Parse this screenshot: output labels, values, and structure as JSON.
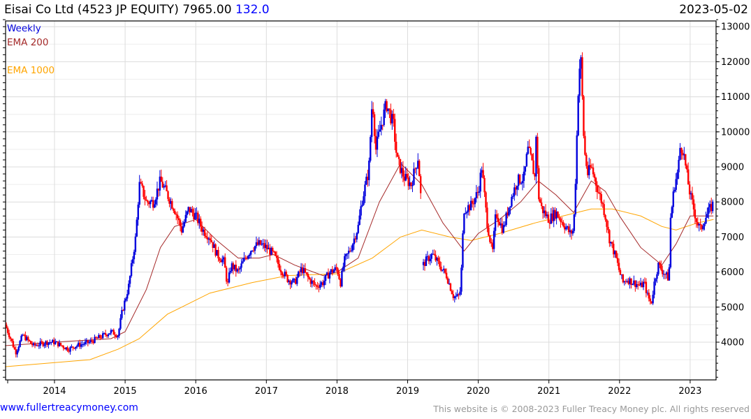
{
  "header": {
    "name": "Eisai Co Ltd (4523 JP EQUITY)",
    "price": "7965.00",
    "change": "132.0",
    "date": "2023-05-02"
  },
  "footer": {
    "link": "www.fullertreacymoney.com",
    "copyright": "This website is © 2008-2023 Fuller Treacy Money plc. All rights reserved"
  },
  "chart_data": {
    "type": "candlestick",
    "title": "Eisai Co Ltd (4523 JP EQUITY) 7965.00 132.0",
    "frequency_label": "Weekly",
    "legend": [
      {
        "label": "Weekly",
        "color": "#0000dd"
      },
      {
        "label": "EMA 200",
        "color": "#a52a2a"
      },
      {
        "label": "EMA 1000",
        "color": "#ffa500"
      }
    ],
    "legend_placement": "top-left",
    "x_range": [
      2013.3,
      2023.4
    ],
    "x_ticks": [
      "2014",
      "2015",
      "2016",
      "2017",
      "2018",
      "2019",
      "2020",
      "2021",
      "2022",
      "2023"
    ],
    "y_range": [
      3000,
      13200
    ],
    "y_ticks": [
      "4000",
      "5000",
      "6000",
      "7000",
      "8000",
      "9000",
      "10000",
      "11000",
      "12000",
      "13000"
    ],
    "grid": true,
    "up_color": "#0000dd",
    "down_color": "#ff0000",
    "price_close_approx": [
      [
        2013.3,
        4500
      ],
      [
        2013.38,
        4100
      ],
      [
        2013.45,
        3700
      ],
      [
        2013.55,
        4200
      ],
      [
        2013.7,
        3900
      ],
      [
        2013.9,
        4000
      ],
      [
        2014.0,
        4000
      ],
      [
        2014.1,
        3900
      ],
      [
        2014.2,
        3800
      ],
      [
        2014.3,
        3900
      ],
      [
        2014.5,
        4000
      ],
      [
        2014.7,
        4200
      ],
      [
        2014.8,
        4300
      ],
      [
        2014.9,
        4200
      ],
      [
        2014.95,
        4800
      ],
      [
        2015.05,
        5600
      ],
      [
        2015.1,
        6300
      ],
      [
        2015.15,
        7000
      ],
      [
        2015.2,
        8500
      ],
      [
        2015.25,
        8300
      ],
      [
        2015.3,
        8000
      ],
      [
        2015.4,
        8000
      ],
      [
        2015.5,
        8600
      ],
      [
        2015.6,
        8200
      ],
      [
        2015.7,
        7800
      ],
      [
        2015.8,
        7200
      ],
      [
        2015.9,
        7800
      ],
      [
        2016.0,
        7600
      ],
      [
        2016.1,
        7200
      ],
      [
        2016.2,
        7000
      ],
      [
        2016.3,
        6500
      ],
      [
        2016.4,
        6300
      ],
      [
        2016.45,
        5600
      ],
      [
        2016.5,
        6200
      ],
      [
        2016.6,
        6000
      ],
      [
        2016.7,
        6400
      ],
      [
        2016.8,
        6700
      ],
      [
        2016.9,
        6800
      ],
      [
        2017.0,
        6700
      ],
      [
        2017.1,
        6500
      ],
      [
        2017.2,
        6100
      ],
      [
        2017.3,
        5800
      ],
      [
        2017.4,
        5700
      ],
      [
        2017.5,
        6100
      ],
      [
        2017.6,
        5800
      ],
      [
        2017.7,
        5600
      ],
      [
        2017.8,
        5700
      ],
      [
        2017.9,
        6000
      ],
      [
        2018.0,
        6100
      ],
      [
        2018.05,
        5700
      ],
      [
        2018.1,
        6300
      ],
      [
        2018.2,
        6700
      ],
      [
        2018.3,
        7300
      ],
      [
        2018.35,
        8000
      ],
      [
        2018.45,
        8900
      ],
      [
        2018.5,
        11000
      ],
      [
        2018.55,
        9500
      ],
      [
        2018.6,
        10000
      ],
      [
        2018.7,
        10800
      ],
      [
        2018.8,
        10200
      ],
      [
        2018.85,
        9200
      ],
      [
        2018.95,
        8700
      ],
      [
        2019.05,
        8500
      ],
      [
        2019.15,
        9300
      ],
      [
        2019.2,
        7700
      ],
      [
        2019.22,
        6200
      ],
      [
        2019.25,
        6300
      ],
      [
        2019.35,
        6500
      ],
      [
        2019.45,
        6200
      ],
      [
        2019.55,
        5900
      ],
      [
        2019.65,
        5300
      ],
      [
        2019.72,
        5300
      ],
      [
        2019.75,
        5500
      ],
      [
        2019.78,
        7000
      ],
      [
        2019.8,
        7800
      ],
      [
        2019.9,
        7900
      ],
      [
        2020.0,
        8300
      ],
      [
        2020.05,
        9000
      ],
      [
        2020.12,
        7500
      ],
      [
        2020.2,
        6500
      ],
      [
        2020.25,
        7700
      ],
      [
        2020.35,
        7200
      ],
      [
        2020.45,
        8000
      ],
      [
        2020.55,
        8600
      ],
      [
        2020.65,
        8700
      ],
      [
        2020.7,
        9500
      ],
      [
        2020.75,
        9200
      ],
      [
        2020.8,
        8700
      ],
      [
        2020.82,
        10000
      ],
      [
        2020.85,
        8200
      ],
      [
        2020.9,
        7800
      ],
      [
        2021.0,
        7500
      ],
      [
        2021.1,
        7700
      ],
      [
        2021.2,
        7400
      ],
      [
        2021.3,
        7100
      ],
      [
        2021.35,
        7200
      ],
      [
        2021.38,
        8800
      ],
      [
        2021.42,
        11500
      ],
      [
        2021.45,
        12200
      ],
      [
        2021.5,
        9500
      ],
      [
        2021.55,
        8800
      ],
      [
        2021.6,
        9000
      ],
      [
        2021.7,
        8300
      ],
      [
        2021.75,
        8000
      ],
      [
        2021.8,
        7600
      ],
      [
        2021.85,
        7000
      ],
      [
        2021.95,
        6400
      ],
      [
        2022.0,
        6000
      ],
      [
        2022.05,
        5700
      ],
      [
        2022.1,
        5800
      ],
      [
        2022.2,
        5700
      ],
      [
        2022.3,
        5600
      ],
      [
        2022.35,
        5700
      ],
      [
        2022.4,
        5300
      ],
      [
        2022.45,
        5100
      ],
      [
        2022.5,
        5800
      ],
      [
        2022.55,
        6200
      ],
      [
        2022.62,
        6000
      ],
      [
        2022.7,
        5800
      ],
      [
        2022.72,
        7500
      ],
      [
        2022.78,
        8500
      ],
      [
        2022.83,
        8900
      ],
      [
        2022.86,
        9600
      ],
      [
        2022.9,
        9500
      ],
      [
        2022.95,
        8800
      ],
      [
        2023.0,
        8200
      ],
      [
        2023.05,
        7800
      ],
      [
        2023.1,
        7400
      ],
      [
        2023.15,
        7200
      ],
      [
        2023.2,
        7500
      ],
      [
        2023.33,
        7965
      ]
    ],
    "ema200_approx": [
      [
        2013.3,
        3900
      ],
      [
        2014.0,
        4000
      ],
      [
        2014.8,
        4100
      ],
      [
        2015.0,
        4300
      ],
      [
        2015.3,
        5500
      ],
      [
        2015.5,
        6700
      ],
      [
        2015.7,
        7300
      ],
      [
        2016.0,
        7500
      ],
      [
        2016.3,
        6900
      ],
      [
        2016.6,
        6400
      ],
      [
        2016.9,
        6400
      ],
      [
        2017.1,
        6500
      ],
      [
        2017.4,
        6200
      ],
      [
        2017.8,
        5900
      ],
      [
        2018.0,
        6000
      ],
      [
        2018.3,
        6400
      ],
      [
        2018.6,
        8000
      ],
      [
        2018.9,
        9100
      ],
      [
        2019.2,
        8500
      ],
      [
        2019.5,
        7400
      ],
      [
        2019.8,
        6600
      ],
      [
        2020.0,
        7100
      ],
      [
        2020.3,
        7500
      ],
      [
        2020.6,
        8000
      ],
      [
        2020.85,
        8600
      ],
      [
        2021.1,
        8200
      ],
      [
        2021.35,
        7700
      ],
      [
        2021.6,
        8600
      ],
      [
        2021.8,
        8300
      ],
      [
        2022.0,
        7600
      ],
      [
        2022.3,
        6700
      ],
      [
        2022.6,
        6200
      ],
      [
        2022.8,
        6800
      ],
      [
        2023.0,
        7600
      ],
      [
        2023.33,
        7600
      ]
    ],
    "ema1000_approx": [
      [
        2013.3,
        3300
      ],
      [
        2014.5,
        3500
      ],
      [
        2014.9,
        3800
      ],
      [
        2015.2,
        4100
      ],
      [
        2015.6,
        4800
      ],
      [
        2016.2,
        5400
      ],
      [
        2016.8,
        5700
      ],
      [
        2017.3,
        5900
      ],
      [
        2018.0,
        5950
      ],
      [
        2018.5,
        6400
      ],
      [
        2018.9,
        7000
      ],
      [
        2019.2,
        7200
      ],
      [
        2019.6,
        7000
      ],
      [
        2019.9,
        6900
      ],
      [
        2020.3,
        7100
      ],
      [
        2020.8,
        7400
      ],
      [
        2021.2,
        7600
      ],
      [
        2021.6,
        7800
      ],
      [
        2021.9,
        7800
      ],
      [
        2022.3,
        7600
      ],
      [
        2022.6,
        7300
      ],
      [
        2022.8,
        7200
      ],
      [
        2023.1,
        7400
      ],
      [
        2023.33,
        7500
      ]
    ]
  }
}
